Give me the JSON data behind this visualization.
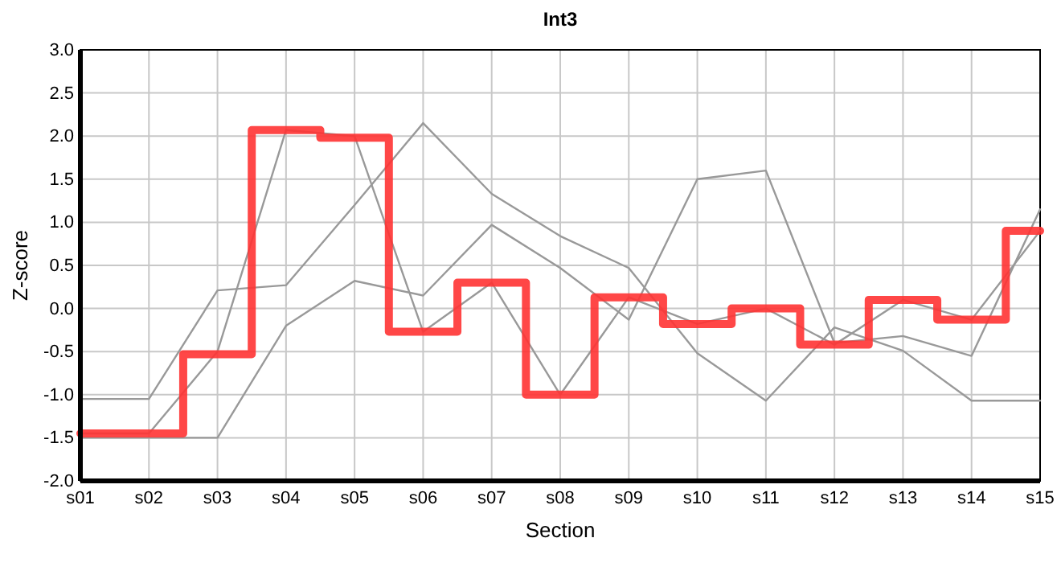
{
  "chart_data": {
    "type": "line",
    "title": "Int3",
    "xlabel": "Section",
    "ylabel": "Z-score",
    "categories": [
      "s01",
      "s02",
      "s03",
      "s04",
      "s05",
      "s06",
      "s07",
      "s08",
      "s09",
      "s10",
      "s11",
      "s12",
      "s13",
      "s14",
      "s15"
    ],
    "ylim": [
      -2,
      3
    ],
    "yticks": [
      {
        "value": -2,
        "label": "-2.0"
      },
      {
        "value": -1.5,
        "label": "-1.5"
      },
      {
        "value": -1,
        "label": "-1.0"
      },
      {
        "value": -0.5,
        "label": "-0.5"
      },
      {
        "value": 0,
        "label": "0.0"
      },
      {
        "value": 0.5,
        "label": "0.5"
      },
      {
        "value": 1,
        "label": "1.0"
      },
      {
        "value": 1.5,
        "label": "1.5"
      },
      {
        "value": 2,
        "label": "2.0"
      },
      {
        "value": 2.5,
        "label": "2.5"
      },
      {
        "value": 3,
        "label": "3.0"
      }
    ],
    "grid": true,
    "marker": "none",
    "line_style": "solid",
    "series": [
      {
        "color": "#999999",
        "values": [
          -1.05,
          -1.05,
          0.21,
          0.27,
          1.2,
          2.15,
          1.33,
          0.84,
          0.47,
          -0.52,
          -1.07,
          -0.22,
          -0.49,
          -1.07,
          -1.07
        ]
      },
      {
        "color": "#999999",
        "values": [
          -1.45,
          -1.45,
          -0.5,
          2.07,
          2.0,
          -0.27,
          0.3,
          -1.0,
          0.13,
          -0.18,
          0.0,
          -0.42,
          0.1,
          -0.13,
          0.9
        ]
      },
      {
        "color": "#999999",
        "values": [
          -1.5,
          -1.5,
          -1.5,
          -0.2,
          0.32,
          0.15,
          0.97,
          0.47,
          -0.13,
          1.5,
          1.6,
          -0.4,
          -0.32,
          -0.55,
          1.15
        ]
      },
      {
        "type": "step",
        "color": "#ff3333",
        "values": [
          -1.45,
          -1.45,
          -0.53,
          2.07,
          1.98,
          -0.27,
          0.3,
          -1.0,
          0.13,
          -0.18,
          0.0,
          -0.42,
          0.1,
          -0.13,
          0.9
        ]
      }
    ]
  }
}
